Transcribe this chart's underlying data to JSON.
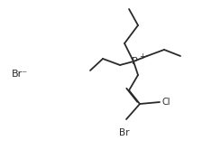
{
  "bg_color": "#ffffff",
  "line_color": "#2a2a2a",
  "line_width": 1.3,
  "text_color": "#2a2a2a",
  "figsize": [
    2.45,
    1.66
  ],
  "dpi": 100,
  "Br_ion_label": "Br⁻",
  "P_label": "P",
  "Cl_label": "Cl",
  "Br_label": "Br",
  "P_plus": "+"
}
